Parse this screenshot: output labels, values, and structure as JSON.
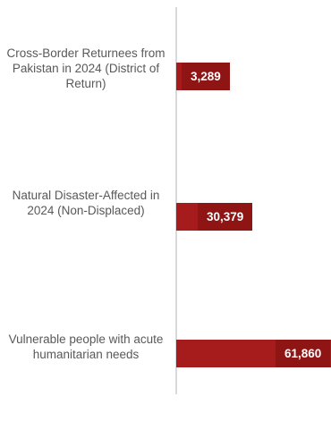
{
  "chart_data": {
    "type": "bar",
    "orientation": "horizontal",
    "categories": [
      "Cross-Border Returnees from Pakistan in 2024 (District of Return)",
      "Natural Disaster-Affected in 2024 (Non-Displaced)",
      "Vulnerable people with acute humanitarian needs"
    ],
    "values": [
      3289,
      30379,
      61860
    ],
    "value_labels": [
      "3,289",
      "30,379",
      "61,860"
    ],
    "xlim": [
      0,
      61860
    ],
    "grid": false,
    "legend": "none",
    "colors": {
      "bar": "#a61c1c",
      "label_box": "#8f1414",
      "label_text": "#ffffff",
      "category_text": "#595959",
      "axis": "#d9d9d9"
    }
  }
}
